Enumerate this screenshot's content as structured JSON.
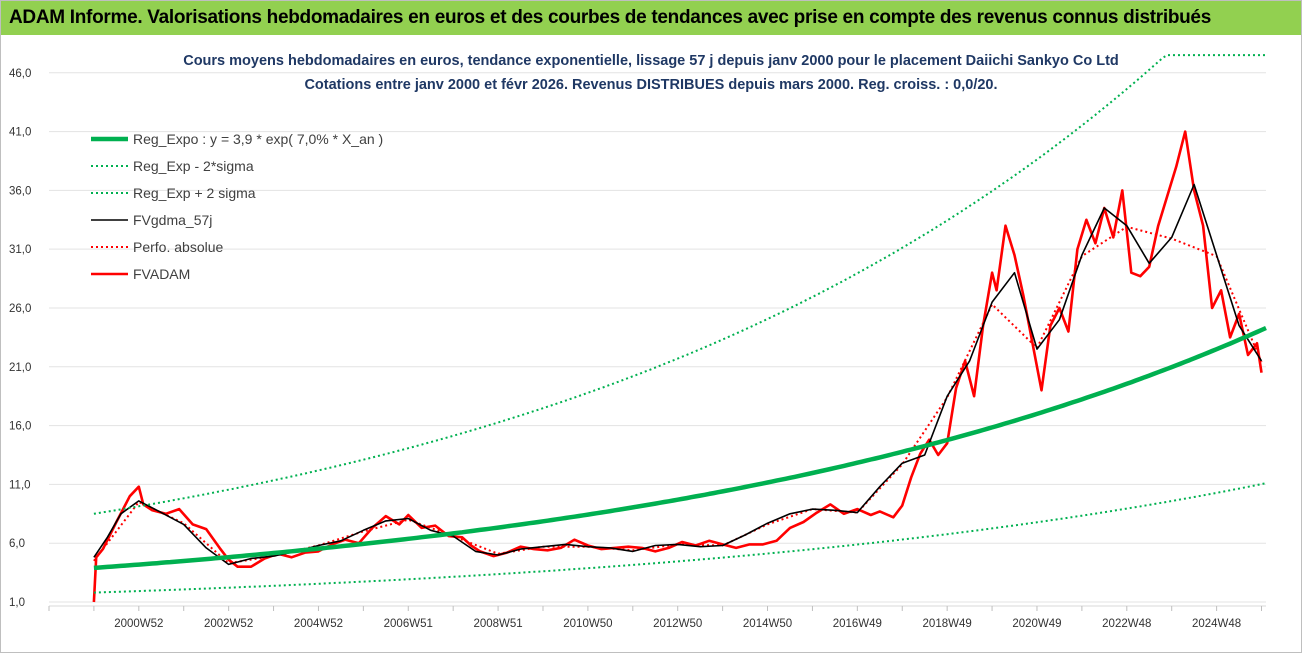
{
  "header": {
    "banner": "ADAM Informe. Valorisations hebdomadaires en euros et des courbes de tendances avec prise en compte des revenus connus distribués",
    "banner_color": "#92d050"
  },
  "chart_data": {
    "type": "line",
    "title": "Cours moyens hebdomadaires en euros, tendance exponentielle, lissage 57 j depuis janv 2000 pour le placement Daiichi Sankyo Co Ltd",
    "subtitle": "Cotations entre janv 2000 et févr 2026. Revenus DISTRIBUES depuis mars 2000. Reg. croiss. : 0,0/20.",
    "xlabel": "",
    "ylabel": "",
    "ylim": [
      1.0,
      47.0
    ],
    "xlim": [
      1999.0,
      2026.1
    ],
    "yticks": [
      "1,0",
      "6,0",
      "11,0",
      "16,0",
      "21,0",
      "26,0",
      "31,0",
      "36,0",
      "41,0",
      "46,0"
    ],
    "ytick_values": [
      1,
      6,
      11,
      16,
      21,
      26,
      31,
      36,
      41,
      46
    ],
    "xtick_labels": [
      "2000W52",
      "2002W52",
      "2004W52",
      "2006W51",
      "2008W51",
      "2010W50",
      "2012W50",
      "2014W50",
      "2016W49",
      "2018W49",
      "2020W49",
      "2022W48",
      "2024W48"
    ],
    "xtick_years": [
      2001.0,
      2003.0,
      2005.0,
      2007.0,
      2009.0,
      2011.0,
      2013.0,
      2015.0,
      2017.0,
      2019.0,
      2021.0,
      2023.0,
      2025.0
    ],
    "grid": "horizontal",
    "legend_position": "top-left",
    "regression": {
      "a": 3.9,
      "rate": 0.07,
      "start_year": 2000.0,
      "cap": 49.0
    },
    "series": [
      {
        "name": "Reg_Expo : y = 3,9 * exp( 7,0% *  X_an )",
        "color": "#00b050",
        "style": "solid-thick",
        "x": [
          2000.0,
          2026.1
        ],
        "y": [
          3.9,
          24.3
        ]
      },
      {
        "name": "Reg_Exp - 2*sigma",
        "color": "#00b050",
        "style": "dotted",
        "x": [
          2000.0,
          2026.1
        ],
        "y": [
          1.8,
          11.1
        ]
      },
      {
        "name": "Reg_Exp + 2 sigma",
        "color": "#00b050",
        "style": "dotted",
        "x": [
          2000.0,
          2024.3,
          2026.1
        ],
        "y": [
          8.5,
          49.0,
          49.0
        ]
      },
      {
        "name": "FVgdma_57j",
        "color": "#000000",
        "style": "solid",
        "x": [
          2000.0,
          2000.3,
          2000.6,
          2001.0,
          2001.5,
          2002.0,
          2002.5,
          2003.0,
          2003.5,
          2004.0,
          2004.5,
          2005.0,
          2005.5,
          2006.0,
          2006.5,
          2007.0,
          2007.5,
          2008.0,
          2008.5,
          2009.0,
          2009.5,
          2010.0,
          2010.5,
          2011.0,
          2011.5,
          2012.0,
          2012.5,
          2013.0,
          2013.5,
          2014.0,
          2014.5,
          2015.0,
          2015.5,
          2016.0,
          2016.5,
          2017.0,
          2017.5,
          2018.0,
          2018.5,
          2019.0,
          2019.5,
          2020.0,
          2020.5,
          2021.0,
          2021.5,
          2022.0,
          2022.5,
          2023.0,
          2023.5,
          2024.0,
          2024.5,
          2025.0,
          2025.5,
          2026.0
        ],
        "y": [
          4.8,
          6.5,
          8.5,
          9.6,
          8.6,
          7.6,
          5.6,
          4.2,
          4.7,
          4.9,
          5.3,
          5.8,
          6.2,
          7.1,
          7.9,
          8.1,
          7.1,
          6.6,
          5.3,
          5.0,
          5.5,
          5.7,
          5.9,
          5.7,
          5.6,
          5.3,
          5.8,
          5.9,
          5.7,
          5.8,
          6.7,
          7.7,
          8.5,
          8.9,
          8.8,
          8.6,
          10.8,
          12.8,
          13.5,
          18.5,
          21.5,
          26.5,
          29.0,
          22.5,
          25.0,
          30.5,
          34.5,
          33.0,
          29.8,
          32.0,
          36.5,
          30.5,
          24.5,
          21.5
        ]
      },
      {
        "name": "Perfo. absolue",
        "color": "#ff0000",
        "style": "dotted",
        "x": [
          2000.0,
          2001.0,
          2002.0,
          2003.0,
          2004.0,
          2005.0,
          2006.0,
          2007.0,
          2008.0,
          2009.0,
          2010.0,
          2011.0,
          2012.0,
          2013.0,
          2014.0,
          2015.0,
          2016.0,
          2017.0,
          2018.0,
          2019.0,
          2020.0,
          2021.0,
          2022.0,
          2023.0,
          2024.0,
          2025.0,
          2026.0
        ],
        "y": [
          4.5,
          9.5,
          7.7,
          4.3,
          4.9,
          5.8,
          7.0,
          8.0,
          6.6,
          5.1,
          5.7,
          5.7,
          5.4,
          5.9,
          5.8,
          7.6,
          8.9,
          8.6,
          12.7,
          18.4,
          26.3,
          22.6,
          30.4,
          32.9,
          31.9,
          30.4,
          21.4
        ]
      },
      {
        "name": "FVADAM",
        "color": "#ff0000",
        "style": "solid-thick",
        "x": [
          2000.0,
          2000.05,
          2000.2,
          2000.5,
          2000.8,
          2001.0,
          2001.1,
          2001.3,
          2001.6,
          2001.9,
          2002.2,
          2002.5,
          2002.8,
          2003.0,
          2003.2,
          2003.5,
          2003.8,
          2004.1,
          2004.4,
          2004.7,
          2005.0,
          2005.3,
          2005.6,
          2005.9,
          2006.2,
          2006.5,
          2006.8,
          2007.0,
          2007.3,
          2007.6,
          2007.9,
          2008.2,
          2008.4,
          2008.6,
          2008.9,
          2009.2,
          2009.5,
          2009.8,
          2010.1,
          2010.4,
          2010.7,
          2011.0,
          2011.3,
          2011.6,
          2011.9,
          2012.2,
          2012.5,
          2012.8,
          2013.1,
          2013.4,
          2013.7,
          2014.0,
          2014.3,
          2014.6,
          2014.9,
          2015.2,
          2015.5,
          2015.8,
          2016.1,
          2016.4,
          2016.7,
          2017.0,
          2017.3,
          2017.5,
          2017.8,
          2018.0,
          2018.2,
          2018.4,
          2018.6,
          2018.8,
          2019.0,
          2019.2,
          2019.4,
          2019.6,
          2019.8,
          2020.0,
          2020.1,
          2020.3,
          2020.5,
          2020.7,
          2020.9,
          2021.1,
          2021.3,
          2021.5,
          2021.7,
          2021.9,
          2022.1,
          2022.3,
          2022.5,
          2022.7,
          2022.9,
          2023.1,
          2023.3,
          2023.5,
          2023.7,
          2023.9,
          2024.1,
          2024.3,
          2024.5,
          2024.7,
          2024.9,
          2025.1,
          2025.3,
          2025.5,
          2025.7,
          2025.9,
          2026.0
        ],
        "y": [
          1.0,
          4.8,
          5.5,
          7.8,
          10.0,
          10.8,
          9.3,
          8.8,
          8.5,
          8.9,
          7.6,
          7.2,
          5.6,
          4.6,
          4.0,
          4.0,
          4.7,
          5.1,
          4.8,
          5.2,
          5.3,
          5.9,
          6.3,
          6.0,
          7.3,
          8.3,
          7.6,
          8.4,
          7.3,
          7.5,
          6.6,
          6.5,
          5.8,
          5.3,
          4.9,
          5.2,
          5.7,
          5.5,
          5.4,
          5.6,
          6.3,
          5.8,
          5.5,
          5.6,
          5.7,
          5.6,
          5.3,
          5.6,
          6.1,
          5.8,
          6.2,
          5.9,
          5.6,
          5.9,
          5.9,
          6.2,
          7.3,
          7.8,
          8.6,
          9.3,
          8.5,
          8.9,
          8.4,
          8.7,
          8.2,
          9.2,
          11.6,
          13.6,
          14.8,
          13.5,
          14.5,
          19.2,
          21.5,
          18.5,
          24.5,
          29.0,
          27.5,
          33.0,
          30.5,
          27.0,
          23.0,
          19.0,
          24.5,
          26.0,
          24.0,
          31.0,
          33.5,
          31.5,
          34.5,
          32.0,
          36.0,
          29.0,
          28.7,
          29.5,
          33.0,
          35.5,
          38.0,
          41.0,
          36.0,
          33.0,
          26.0,
          27.5,
          23.5,
          25.5,
          22.0,
          23.0,
          20.5
        ]
      }
    ]
  }
}
